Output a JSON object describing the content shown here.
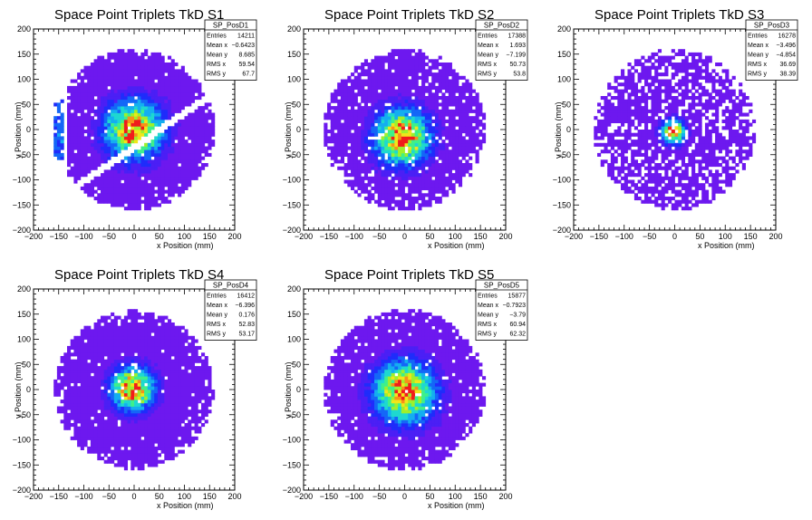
{
  "chart_data": [
    {
      "type": "heatmap",
      "title": "Space Point Triplets TkD S1",
      "xlabel": "x Position (mm)",
      "ylabel": "y Position (mm)",
      "xlim": [
        -200,
        200
      ],
      "ylim": [
        -200,
        200
      ],
      "xticks": [
        "−200",
        "−150",
        "−100",
        "−50",
        "0",
        "50",
        "100",
        "150",
        "200"
      ],
      "yticks": [
        "200",
        "150",
        "100",
        "50",
        "0",
        "−50",
        "−100",
        "−150",
        "−200"
      ],
      "stats": {
        "name": "SP_PosD1",
        "rows": [
          {
            "label": "Entries",
            "value": "14211"
          },
          {
            "label": "Mean x",
            "value": "−0.6423"
          },
          {
            "label": "Mean y",
            "value": "8.685"
          },
          {
            "label": "RMS x",
            "value": "59.54"
          },
          {
            "label": "RMS y",
            "value": "67.7"
          }
        ]
      },
      "distribution": {
        "radius_mm": 160,
        "peak_x_mm": 0,
        "peak_y_mm": 0,
        "sigma_mm": 40,
        "fill_fraction": 0.97
      },
      "gap_band": {
        "slope": 0.68,
        "intercept_mm": -35,
        "half_width_mm": 9
      },
      "left_strip": {
        "x_min_mm": -160,
        "x_max_mm": -140,
        "y_min_mm": -60,
        "y_max_mm": 60
      }
    },
    {
      "type": "heatmap",
      "title": "Space Point Triplets TkD S2",
      "xlabel": "x Position (mm)",
      "ylabel": "y Position (mm)",
      "xlim": [
        -200,
        200
      ],
      "ylim": [
        -200,
        200
      ],
      "xticks": [
        "−200",
        "−150",
        "−100",
        "−50",
        "0",
        "50",
        "100",
        "150",
        "200"
      ],
      "yticks": [
        "200",
        "150",
        "100",
        "50",
        "0",
        "−50",
        "−100",
        "−150",
        "−200"
      ],
      "stats": {
        "name": "SP_PosD2",
        "rows": [
          {
            "label": "Entries",
            "value": "17388"
          },
          {
            "label": "Mean x",
            "value": "1.693"
          },
          {
            "label": "Mean y",
            "value": "−7.199"
          },
          {
            "label": "RMS x",
            "value": "50.73"
          },
          {
            "label": "RMS y",
            "value": "53.8"
          }
        ]
      },
      "distribution": {
        "radius_mm": 160,
        "peak_x_mm": -5,
        "peak_y_mm": -15,
        "sigma_mm": 38,
        "fill_fraction": 0.9
      }
    },
    {
      "type": "heatmap",
      "title": "Space Point Triplets TkD S3",
      "xlabel": "x Position (mm)",
      "ylabel": "y Position (mm)",
      "xlim": [
        -200,
        200
      ],
      "ylim": [
        -200,
        200
      ],
      "xticks": [
        "−200",
        "−150",
        "−100",
        "−50",
        "0",
        "50",
        "100",
        "150",
        "200"
      ],
      "yticks": [
        "200",
        "150",
        "100",
        "50",
        "0",
        "−50",
        "−100",
        "−150",
        "−200"
      ],
      "stats": {
        "name": "SP_PosD3",
        "rows": [
          {
            "label": "Entries",
            "value": "16278"
          },
          {
            "label": "Mean x",
            "value": "−3.496"
          },
          {
            "label": "Mean y",
            "value": "−4.854"
          },
          {
            "label": "RMS x",
            "value": "36.69"
          },
          {
            "label": "RMS y",
            "value": "38.39"
          }
        ]
      },
      "distribution": {
        "radius_mm": 160,
        "peak_x_mm": -3,
        "peak_y_mm": -4,
        "sigma_mm": 16,
        "fill_fraction": 0.72
      }
    },
    {
      "type": "heatmap",
      "title": "Space Point Triplets TkD S4",
      "xlabel": "x Position (mm)",
      "ylabel": "y Position (mm)",
      "xlim": [
        -200,
        200
      ],
      "ylim": [
        -200,
        200
      ],
      "xticks": [
        "−200",
        "−150",
        "−100",
        "−50",
        "0",
        "50",
        "100",
        "150",
        "200"
      ],
      "yticks": [
        "200",
        "150",
        "100",
        "50",
        "0",
        "−50",
        "−100",
        "−150",
        "−200"
      ],
      "stats": {
        "name": "SP_PosD4",
        "rows": [
          {
            "label": "Entries",
            "value": "16412"
          },
          {
            "label": "Mean x",
            "value": "−6.396"
          },
          {
            "label": "Mean y",
            "value": "0.176"
          },
          {
            "label": "RMS x",
            "value": "52.83"
          },
          {
            "label": "RMS y",
            "value": "53.17"
          }
        ]
      },
      "distribution": {
        "radius_mm": 158,
        "peak_x_mm": -3,
        "peak_y_mm": 2,
        "sigma_mm": 30,
        "fill_fraction": 0.96
      }
    },
    {
      "type": "heatmap",
      "title": "Space Point Triplets TkD S5",
      "xlabel": "x Position (mm)",
      "ylabel": "y Position (mm)",
      "xlim": [
        -200,
        200
      ],
      "ylim": [
        -200,
        200
      ],
      "xticks": [
        "−200",
        "−150",
        "−100",
        "−50",
        "0",
        "50",
        "100",
        "150",
        "200"
      ],
      "yticks": [
        "200",
        "150",
        "100",
        "50",
        "0",
        "−50",
        "−100",
        "−150",
        "−200"
      ],
      "stats": {
        "name": "SP_PosD5",
        "rows": [
          {
            "label": "Entries",
            "value": "15877"
          },
          {
            "label": "Mean x",
            "value": "−0.7923"
          },
          {
            "label": "Mean y",
            "value": "−3.79"
          },
          {
            "label": "RMS x",
            "value": "60.94"
          },
          {
            "label": "RMS y",
            "value": "62.32"
          }
        ]
      },
      "distribution": {
        "radius_mm": 160,
        "peak_x_mm": 0,
        "peak_y_mm": -5,
        "sigma_mm": 42,
        "fill_fraction": 0.95
      }
    }
  ],
  "colors": {
    "palette": [
      "#6d18ef",
      "#4b1ff5",
      "#1f2cfb",
      "#1467f7",
      "#14aef0",
      "#1ed8d0",
      "#3ef08a",
      "#9ef02c",
      "#f0e61a",
      "#f8901a",
      "#f01c1c"
    ],
    "axis": "#000000",
    "stats_border": "#000000"
  }
}
